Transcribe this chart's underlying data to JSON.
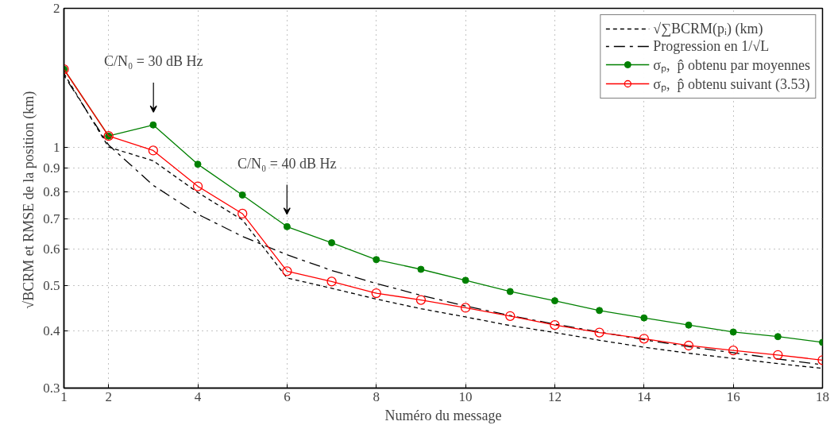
{
  "chart_data": {
    "type": "line",
    "xlabel": "Numéro du message",
    "ylabel": "√BCRM et  RMSE de la position (km)",
    "x": [
      1,
      2,
      3,
      4,
      5,
      6,
      7,
      8,
      9,
      10,
      11,
      12,
      13,
      14,
      15,
      16,
      17,
      18
    ],
    "series": [
      {
        "name": "√∑BCRM(pᵢ) (km)",
        "color": "#000000",
        "line_style": "dashed",
        "marker": "none",
        "values": [
          1.445,
          1.0,
          0.934,
          0.797,
          0.695,
          0.52,
          0.494,
          0.468,
          0.446,
          0.428,
          0.41,
          0.396,
          0.381,
          0.368,
          0.357,
          0.348,
          0.339,
          0.331
        ]
      },
      {
        "name": "Progression en 1/√L",
        "color": "#000000",
        "line_style": "dashdot",
        "marker": "none",
        "values": [
          1.43,
          1.011,
          0.826,
          0.715,
          0.64,
          0.584,
          0.54,
          0.506,
          0.477,
          0.452,
          0.431,
          0.413,
          0.397,
          0.382,
          0.369,
          0.358,
          0.347,
          0.337
        ]
      },
      {
        "name": "σₚ,  p̂ obtenu par moyennes",
        "color": "#008000",
        "line_style": "solid",
        "marker": "circle",
        "values": [
          1.475,
          1.057,
          1.117,
          0.918,
          0.787,
          0.672,
          0.62,
          0.57,
          0.543,
          0.514,
          0.486,
          0.464,
          0.442,
          0.426,
          0.411,
          0.397,
          0.388,
          0.377
        ]
      },
      {
        "name": "σₚ,  p̂ obtenu suivant (3.53)",
        "color": "#ff0000",
        "line_style": "solid",
        "marker": "open_circle",
        "values": [
          1.475,
          1.057,
          0.983,
          0.822,
          0.717,
          0.538,
          0.511,
          0.482,
          0.466,
          0.448,
          0.43,
          0.411,
          0.396,
          0.384,
          0.371,
          0.362,
          0.354,
          0.345
        ]
      }
    ],
    "annotations": [
      "C/N₀ = 30 dB Hz",
      "C/N₀ = 40 dB Hz"
    ],
    "log": "y",
    "xlim": [
      1,
      18
    ],
    "ylim": [
      0.3,
      2
    ],
    "xticks": [
      1,
      2,
      4,
      6,
      8,
      10,
      12,
      14,
      16,
      18
    ],
    "yticks": [
      0.3,
      0.4,
      0.5,
      0.6,
      0.7,
      0.8,
      0.9,
      1,
      2
    ],
    "grid": true,
    "legend": "top right"
  }
}
